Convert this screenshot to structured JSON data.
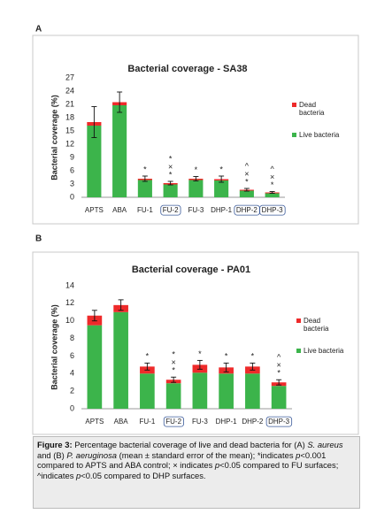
{
  "chart_data": [
    {
      "type": "stacked-bar",
      "panel": "A",
      "title": "Bacterial coverage - SA38",
      "y_label": "Bacterial coverage (%)",
      "categories": [
        "APTS",
        "ABA",
        "FU-1",
        "FU-2",
        "FU-3",
        "DHP-1",
        "DHP-2",
        "DHP-3"
      ],
      "boxed": [
        false,
        false,
        false,
        true,
        false,
        false,
        true,
        true
      ],
      "series": [
        {
          "name": "Live bacteria",
          "color": "#3cb44b",
          "values": [
            16.2,
            20.8,
            3.9,
            2.9,
            3.9,
            3.8,
            1.5,
            0.9
          ]
        },
        {
          "name": "Dead bacteria",
          "color": "#ee2a2a",
          "values": [
            0.8,
            0.7,
            0.3,
            0.3,
            0.3,
            0.3,
            0.2,
            0.2
          ]
        }
      ],
      "errors": [
        3.5,
        2.3,
        0.6,
        0.4,
        0.5,
        0.7,
        0.3,
        0.2
      ],
      "annotations": [
        [],
        [],
        [
          "*"
        ],
        [
          "*",
          "×",
          "*"
        ],
        [
          "*"
        ],
        [
          "*"
        ],
        [
          "^",
          "×",
          "*"
        ],
        [
          "^",
          "×",
          "*"
        ]
      ],
      "ylim": [
        0,
        27
      ],
      "yticks": [
        0,
        3,
        6,
        9,
        12,
        15,
        18,
        21,
        24,
        27
      ],
      "legend": "right"
    },
    {
      "type": "stacked-bar",
      "panel": "B",
      "title": "Bacterial coverage - PA01",
      "y_label": "Bacterial coverage (%)",
      "categories": [
        "APTS",
        "ABA",
        "FU-1",
        "FU-2",
        "FU-3",
        "DHP-1",
        "DHP-2",
        "DHP-3"
      ],
      "boxed": [
        false,
        false,
        false,
        true,
        false,
        false,
        false,
        true
      ],
      "series": [
        {
          "name": "Live bacteria",
          "color": "#3cb44b",
          "values": [
            9.5,
            11.0,
            4.0,
            2.9,
            4.1,
            4.0,
            4.0,
            2.6
          ]
        },
        {
          "name": "Dead bacteria",
          "color": "#ee2a2a",
          "values": [
            1.1,
            0.8,
            0.8,
            0.4,
            0.9,
            0.7,
            0.8,
            0.4
          ]
        }
      ],
      "errors": [
        0.6,
        0.6,
        0.4,
        0.3,
        0.5,
        0.5,
        0.4,
        0.3
      ],
      "annotations": [
        [],
        [],
        [
          "*"
        ],
        [
          "*",
          "×",
          "*"
        ],
        [
          "*"
        ],
        [
          "*"
        ],
        [
          "*"
        ],
        [
          "^",
          "×",
          "*"
        ]
      ],
      "ylim": [
        0,
        14
      ],
      "yticks": [
        0,
        2,
        4,
        6,
        8,
        10,
        12,
        14
      ],
      "legend": "right"
    }
  ],
  "caption": [
    {
      "text": "Figure 3:",
      "style": "bold"
    },
    {
      "text": " Percentage bacterial coverage of live and dead bacteria for (A) "
    },
    {
      "text": "S. aureus",
      "style": "italic"
    },
    {
      "text": " and (B) "
    },
    {
      "text": "P. aeruginosa",
      "style": "italic"
    },
    {
      "text": " (mean ± standard error of the mean); *indicates "
    },
    {
      "text": "p",
      "style": "italic"
    },
    {
      "text": "<0.001 compared to APTS and ABA control;  × indicates "
    },
    {
      "text": "p",
      "style": "italic"
    },
    {
      "text": "<0.05 compared to FU surfaces; ^indicates "
    },
    {
      "text": "p",
      "style": "italic"
    },
    {
      "text": "<0.05 compared to DHP surfaces."
    }
  ]
}
